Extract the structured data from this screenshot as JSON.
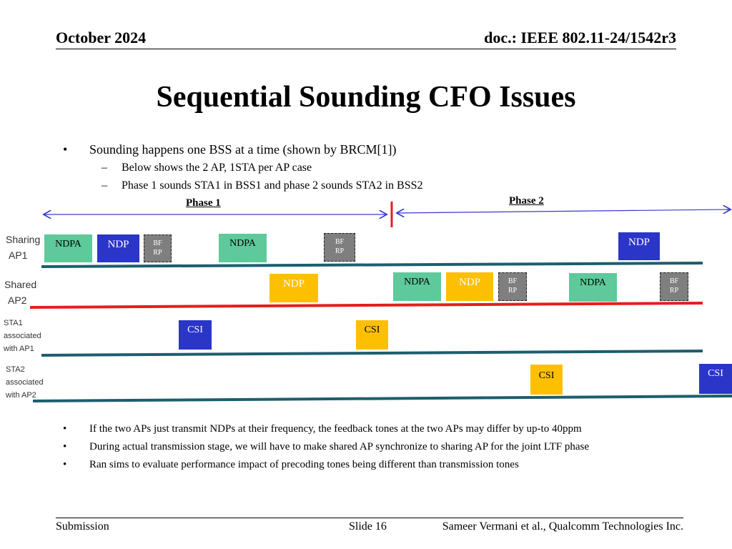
{
  "header": {
    "date": "October 2024",
    "doc": "doc.: IEEE 802.11-24/1542r3"
  },
  "title": "Sequential Sounding CFO Issues",
  "bullets_top": {
    "main": "Sounding happens one BSS at a time (shown by BRCM[1])",
    "sub": [
      "Below shows the 2 AP, 1STA per AP case",
      "Phase 1 sounds STA1 in BSS1 and phase 2 sounds STA2 in BSS2"
    ]
  },
  "diagram": {
    "phase1": "Phase 1",
    "phase2": "Phase 2",
    "lanes": {
      "ap1": [
        "Sharing",
        "AP1"
      ],
      "ap2": [
        "Shared",
        "AP2"
      ],
      "sta1": [
        "STA1",
        "associated",
        "with AP1"
      ],
      "sta2": [
        "STA2",
        "associated",
        "with AP2"
      ]
    },
    "boxes": {
      "ndpa": "NDPA",
      "ndp": "NDP",
      "bfrp_1": "BF",
      "bfrp_2": "RP",
      "csi": "CSI"
    },
    "colors": {
      "green": "#5ec99a",
      "blue": "#2b35c8",
      "gray": "#7f7f7f",
      "yellow": "#fdc000",
      "red": "#e41e1e",
      "lane": "#1d5e6e"
    }
  },
  "bullets_bottom": [
    "If the two APs just transmit NDPs at their frequency, the feedback tones at the two APs  may differ by up-to 40ppm",
    "During actual transmission stage, we will have to make shared AP synchronize to sharing AP for the joint LTF phase",
    "Ran sims to evaluate performance impact of precoding tones being different than transmission tones"
  ],
  "footer": {
    "left": "Submission",
    "center": "Slide 16",
    "right": "Sameer Vermani et al., Qualcomm Technologies Inc."
  }
}
